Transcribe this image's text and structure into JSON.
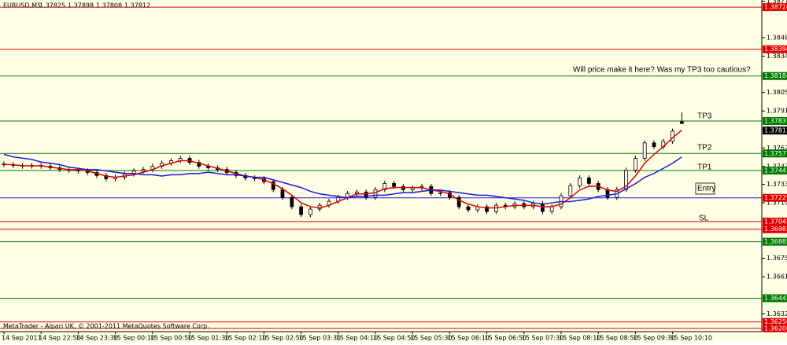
{
  "chart_data": {
    "type": "candlestick",
    "title": "EURUSD,M5",
    "footer": "MetaTrader - Alpari UK, © 2001-2011 MetaQuotes Software Corp.",
    "categories": [
      "14 Sep 2011",
      null,
      null,
      null,
      "14 Sep 22:50",
      null,
      null,
      null,
      "14 Sep 23:30",
      null,
      null,
      null,
      "15 Sep 00:10",
      null,
      null,
      null,
      "15 Sep 00:50",
      null,
      null,
      null,
      "15 Sep 01:30",
      null,
      null,
      null,
      "15 Sep 02:10",
      null,
      null,
      null,
      "15 Sep 02:50",
      null,
      null,
      null,
      "15 Sep 03:30",
      null,
      null,
      null,
      "15 Sep 04:10",
      null,
      null,
      null,
      "15 Sep 04:50",
      null,
      null,
      null,
      "15 Sep 05:30",
      null,
      null,
      null,
      "15 Sep 06:10",
      null,
      null,
      null,
      "15 Sep 06:50",
      null,
      null,
      null,
      "15 Sep 07:30",
      null,
      null,
      null,
      "15 Sep 08:10",
      null,
      null,
      null,
      "15 Sep 08:50",
      null,
      null,
      null,
      "15 Sep 09:30",
      null,
      null,
      null,
      "15 Sep 10:10",
      null
    ],
    "open": [
      1.37495,
      1.37489,
      1.37483,
      1.37477,
      1.37483,
      1.37477,
      1.37465,
      1.37452,
      1.37446,
      1.3744,
      1.37428,
      1.37404,
      1.37379,
      1.37391,
      1.37416,
      1.3744,
      1.37452,
      1.37477,
      1.37501,
      1.3752,
      1.37538,
      1.37507,
      1.37477,
      1.37465,
      1.37452,
      1.37428,
      1.37404,
      1.37385,
      1.37379,
      1.37355,
      1.37294,
      1.37232,
      1.37159,
      1.37098,
      1.37141,
      1.37171,
      1.37202,
      1.37232,
      1.37263,
      1.37275,
      1.37232,
      1.37294,
      1.37342,
      1.37318,
      1.37294,
      1.37306,
      1.37318,
      1.37263,
      1.37269,
      1.37232,
      1.37159,
      1.37135,
      1.37159,
      1.37122,
      1.37171,
      1.37159,
      1.37184,
      1.37159,
      1.37184,
      1.37122,
      1.37159,
      1.37245,
      1.37324,
      1.37385,
      1.37342,
      1.37294,
      1.37232,
      1.37294,
      1.37446,
      1.37538,
      1.3766,
      1.3763,
      1.37672,
      1.37825
    ],
    "high": [
      1.37515,
      1.37509,
      1.37503,
      1.37503,
      1.37503,
      1.37497,
      1.37485,
      1.37472,
      1.37466,
      1.3746,
      1.37448,
      1.37424,
      1.37411,
      1.37436,
      1.3746,
      1.37472,
      1.37497,
      1.37521,
      1.3754,
      1.37558,
      1.37558,
      1.37527,
      1.37497,
      1.37485,
      1.37472,
      1.37448,
      1.37424,
      1.37405,
      1.37399,
      1.37375,
      1.37314,
      1.37252,
      1.37179,
      1.37161,
      1.37191,
      1.37222,
      1.37252,
      1.37283,
      1.37295,
      1.37295,
      1.37314,
      1.37362,
      1.37362,
      1.37338,
      1.37326,
      1.37338,
      1.37338,
      1.37289,
      1.37289,
      1.37252,
      1.37179,
      1.37179,
      1.37179,
      1.37191,
      1.37191,
      1.37204,
      1.37204,
      1.37204,
      1.37204,
      1.37179,
      1.37265,
      1.37344,
      1.37405,
      1.37405,
      1.37362,
      1.37314,
      1.37314,
      1.37466,
      1.37558,
      1.3768,
      1.3768,
      1.37692,
      1.37772,
      1.37898
    ],
    "low": [
      1.37469,
      1.37463,
      1.37457,
      1.37457,
      1.37457,
      1.37445,
      1.37432,
      1.37426,
      1.3742,
      1.37408,
      1.37384,
      1.37359,
      1.37359,
      1.37371,
      1.37396,
      1.3742,
      1.37432,
      1.37457,
      1.37481,
      1.375,
      1.37487,
      1.37457,
      1.37445,
      1.37432,
      1.37408,
      1.37384,
      1.37365,
      1.37359,
      1.37335,
      1.37274,
      1.37212,
      1.37139,
      1.37078,
      1.37078,
      1.37121,
      1.37151,
      1.37182,
      1.37212,
      1.37243,
      1.37212,
      1.37212,
      1.37274,
      1.37298,
      1.37274,
      1.37274,
      1.37286,
      1.37243,
      1.37243,
      1.37212,
      1.37139,
      1.37115,
      1.37115,
      1.37102,
      1.37102,
      1.37139,
      1.37139,
      1.37139,
      1.37139,
      1.37102,
      1.37102,
      1.37139,
      1.37225,
      1.37304,
      1.37322,
      1.37274,
      1.37212,
      1.37212,
      1.37274,
      1.37426,
      1.37518,
      1.3761,
      1.3761,
      1.37652,
      1.37808
    ],
    "close": [
      1.37489,
      1.37483,
      1.37477,
      1.37483,
      1.37477,
      1.37465,
      1.37452,
      1.37446,
      1.3744,
      1.37428,
      1.37404,
      1.37379,
      1.37391,
      1.37416,
      1.3744,
      1.37452,
      1.37477,
      1.37501,
      1.3752,
      1.37538,
      1.37507,
      1.37477,
      1.37465,
      1.37452,
      1.37428,
      1.37404,
      1.37385,
      1.37379,
      1.37355,
      1.37294,
      1.37232,
      1.37159,
      1.37098,
      1.37141,
      1.37171,
      1.37202,
      1.37232,
      1.37263,
      1.37275,
      1.37232,
      1.37294,
      1.37342,
      1.37318,
      1.37294,
      1.37306,
      1.37318,
      1.37263,
      1.37269,
      1.37232,
      1.37159,
      1.37135,
      1.37159,
      1.37122,
      1.37171,
      1.37159,
      1.37184,
      1.37159,
      1.37184,
      1.37122,
      1.37159,
      1.37245,
      1.37324,
      1.37385,
      1.37342,
      1.37294,
      1.37232,
      1.37294,
      1.37446,
      1.37538,
      1.3766,
      1.3763,
      1.37672,
      1.37752,
      1.37812
    ],
    "series": [
      {
        "color": "#e00000",
        "values": [
          1.3749,
          1.3749,
          1.3748,
          1.3748,
          1.3748,
          1.3747,
          1.3746,
          1.3745,
          1.3745,
          1.3744,
          1.3742,
          1.374,
          1.3739,
          1.374,
          1.3741,
          1.3743,
          1.3745,
          1.3748,
          1.375,
          1.3752,
          1.3752,
          1.375,
          1.3748,
          1.3746,
          1.3744,
          1.3742,
          1.374,
          1.3739,
          1.3737,
          1.3734,
          1.373,
          1.3725,
          1.3719,
          1.3716,
          1.3715,
          1.3717,
          1.372,
          1.3723,
          1.3726,
          1.3726,
          1.3727,
          1.373,
          1.3731,
          1.3731,
          1.3731,
          1.3731,
          1.3729,
          1.3728,
          1.3726,
          1.3721,
          1.3718,
          1.3716,
          1.3715,
          1.3715,
          1.3716,
          1.3717,
          1.3717,
          1.3717,
          1.3716,
          1.3716,
          1.3718,
          1.3723,
          1.3729,
          1.3732,
          1.3732,
          1.3729,
          1.3728,
          1.3732,
          1.374,
          1.375,
          1.3757,
          1.3763,
          1.377,
          1.3776
        ]
      },
      {
        "color": "#1a1ae0",
        "values": [
          1.3757,
          1.3755,
          1.3754,
          1.3753,
          1.3751,
          1.375,
          1.3749,
          1.3747,
          1.3746,
          1.3745,
          1.3745,
          1.3744,
          1.3743,
          1.3742,
          1.3742,
          1.3741,
          1.3741,
          1.374,
          1.3741,
          1.3741,
          1.3742,
          1.3742,
          1.3743,
          1.3742,
          1.3741,
          1.3741,
          1.374,
          1.3739,
          1.3739,
          1.3737,
          1.3735,
          1.3733,
          1.3731,
          1.3728,
          1.3726,
          1.3725,
          1.3724,
          1.3723,
          1.3724,
          1.3724,
          1.3725,
          1.3725,
          1.3726,
          1.3727,
          1.3727,
          1.3728,
          1.3729,
          1.3729,
          1.3728,
          1.3727,
          1.3726,
          1.3725,
          1.3725,
          1.3724,
          1.3723,
          1.3722,
          1.3721,
          1.3719,
          1.3718,
          1.3719,
          1.372,
          1.372,
          1.3721,
          1.3722,
          1.3724,
          1.3725,
          1.3726,
          1.373,
          1.3734,
          1.3739,
          1.3742,
          1.3746,
          1.375,
          1.3755
        ]
      }
    ],
    "levels": [
      {
        "value": 1.38724,
        "color": "#e00000"
      },
      {
        "value": 1.38394,
        "color": "#e00000"
      },
      {
        "value": 1.38184,
        "color": "#007a00"
      },
      {
        "value": 1.37831,
        "color": "#007a00"
      },
      {
        "value": 1.37577,
        "color": "#007a00"
      },
      {
        "value": 1.37443,
        "color": "#007a00"
      },
      {
        "value": 1.37229,
        "color": "#1a1ae0"
      },
      {
        "value": 1.37043,
        "color": "#e00000"
      },
      {
        "value": 1.36983,
        "color": "#e00000"
      },
      {
        "value": 1.36885,
        "color": "#007a00"
      },
      {
        "value": 1.36442,
        "color": "#007a00"
      },
      {
        "value": 1.36256,
        "color": "#e00000"
      },
      {
        "value": 1.36206,
        "color": "#e00000"
      }
    ],
    "annotations": [
      "Will price make it here? Was my TP3 too cautious?",
      "TP3",
      "TP2",
      "TP1",
      "Entry",
      "SL"
    ],
    "ylim": [
      1.3618,
      1.3878
    ],
    "yticks": [
      {
        "value": 1.3877,
        "label": "1.38770"
      },
      1.38485,
      {
        "value": 1.3834,
        "label": "1.38340"
      },
      1.38055,
      {
        "value": 1.3791,
        "label": "1.37910"
      },
      1.37765,
      {
        "value": 1.3762,
        "label": "1.37620"
      },
      1.37475,
      1.37335,
      {
        "value": 1.3719,
        "label": "1.37190"
      },
      1.36755,
      {
        "value": 1.3661,
        "label": "1.36610"
      },
      {
        "value": 1.3632,
        "label": "1.36320"
      }
    ]
  }
}
